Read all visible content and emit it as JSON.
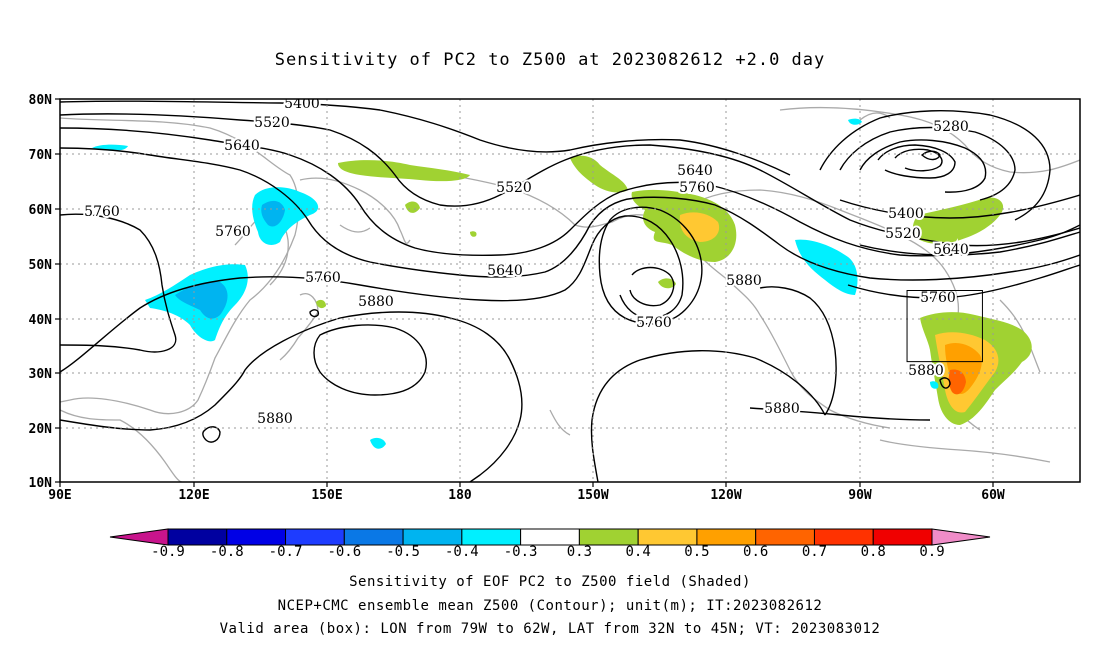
{
  "title": "Sensitivity of PC2 to Z500 at 2023082612 +2.0 day",
  "lat_labels": [
    "80N",
    "70N",
    "60N",
    "50N",
    "40N",
    "30N",
    "20N",
    "10N"
  ],
  "lon_labels": [
    "90E",
    "120E",
    "150E",
    "180",
    "150W",
    "120W",
    "90W",
    "60W"
  ],
  "contour_labels": {
    "c5400a": "5400",
    "c5520a": "5520",
    "c5640a": "5640",
    "c5760a": "5760",
    "c5760b": "5760",
    "c5760c": "5760",
    "c5880a": "5880",
    "c5520b": "5520",
    "c5640b": "5640",
    "c5760d": "5760",
    "c5640c": "5640",
    "c5760e": "5760",
    "c5880b": "5880",
    "c5280": "5280",
    "c5400b": "5400",
    "c5520c": "5520",
    "c5640d": "5640",
    "c5760f": "5760",
    "c5880c": "5880",
    "c5880d": "5880",
    "c5880e": "5880"
  },
  "colorbar": {
    "labels": [
      "-0.9",
      "-0.8",
      "-0.7",
      "-0.6",
      "-0.5",
      "-0.4",
      "-0.3",
      "0.3",
      "0.4",
      "0.5",
      "0.6",
      "0.7",
      "0.8",
      "0.9"
    ],
    "colors": [
      "#0000a0",
      "#0000e6",
      "#1e3cff",
      "#0a78e6",
      "#00b4f0",
      "#00f0ff",
      "#ffffff",
      "#a0d232",
      "#ffc832",
      "#ffa000",
      "#ff6400",
      "#ff3200",
      "#f00000"
    ],
    "low_arrow_color": "#c8148c",
    "high_arrow_color": "#f08cc8"
  },
  "footer": {
    "line1": "Sensitivity of EOF PC2 to Z500 field (Shaded)",
    "line2": "NCEP+CMC ensemble mean Z500 (Contour); unit(m); IT:2023082612",
    "line3": "Valid area (box): LON from 79W to 62W, LAT from 32N to 45N; VT: 2023083012"
  },
  "valid_box": {
    "lon_min": -79,
    "lon_max": -62,
    "lat_min": 32,
    "lat_max": 45
  }
}
